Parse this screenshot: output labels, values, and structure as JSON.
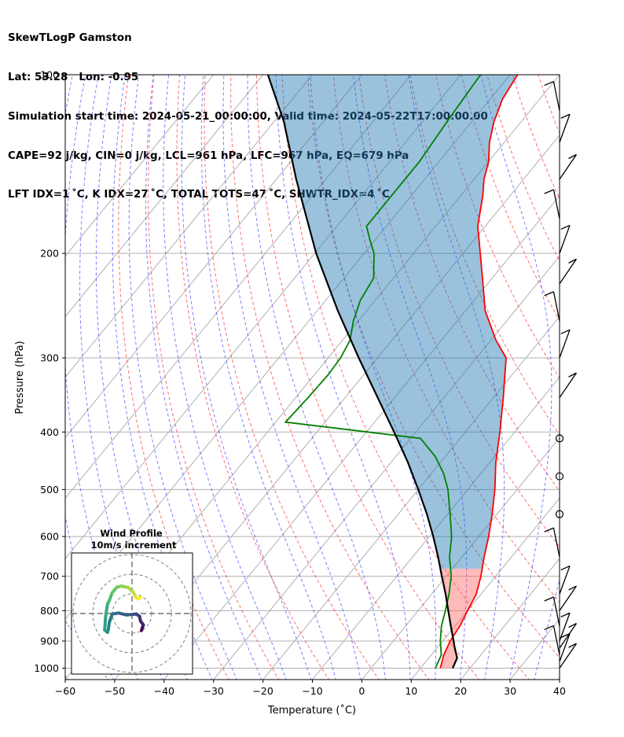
{
  "header": {
    "line1": "SkewTLogP Gamston",
    "line2": "Lat: 53.28   Lon: -0.95",
    "line3": "Simulation start time: 2024-05-21_00:00:00, Valid time: 2024-05-22T17:00:00.00",
    "line4": "CAPE=92 j/kg, CIN=0 j/kg, LCL=961 hPa, LFC=967 hPa, EQ=679 hPa",
    "line5": "LFT IDX=1 ˚C, K IDX=27 ˚C, TOTAL TOTS=47 ˚C, SHWTR_IDX=4 ˚C"
  },
  "chart_data": {
    "type": "skewt",
    "xlabel": "Temperature (˚C)",
    "ylabel": "Pressure (hPa)",
    "xlim": [
      -60,
      40
    ],
    "ylim": [
      1050,
      100
    ],
    "xticks": [
      -60,
      -50,
      -40,
      -30,
      -20,
      -10,
      0,
      10,
      20,
      30,
      40
    ],
    "yticks": [
      1000,
      900,
      800,
      700,
      600,
      500,
      400,
      300,
      200,
      100
    ],
    "temperature": {
      "name": "Temperature",
      "color": "#ff0000",
      "p": [
        1000,
        950,
        900,
        850,
        800,
        750,
        700,
        650,
        600,
        550,
        500,
        450,
        400,
        350,
        300,
        280,
        250,
        220,
        200,
        180,
        160,
        150,
        140,
        130,
        120,
        110,
        100
      ],
      "t": [
        14,
        12.5,
        11.5,
        11,
        10,
        9,
        7,
        4.5,
        2,
        -1,
        -4.5,
        -8.8,
        -13,
        -18,
        -24,
        -29,
        -36,
        -42,
        -46.5,
        -51.5,
        -55.5,
        -58,
        -60,
        -63,
        -65.5,
        -67.5,
        -68.5
      ]
    },
    "dewpoint": {
      "name": "Dewpoint",
      "color": "#008000",
      "p": [
        1000,
        950,
        900,
        850,
        800,
        750,
        700,
        650,
        600,
        550,
        500,
        470,
        440,
        410,
        385,
        350,
        320,
        300,
        280,
        260,
        240,
        220,
        200,
        190,
        180,
        160,
        140,
        120,
        100
      ],
      "t": [
        13,
        12,
        9.5,
        7.3,
        5.5,
        3.5,
        1,
        -2.5,
        -5.5,
        -9.5,
        -14,
        -17.5,
        -22,
        -28,
        -58,
        -57.5,
        -57.2,
        -57.5,
        -58.5,
        -61,
        -63,
        -64,
        -68,
        -71,
        -74,
        -74,
        -74,
        -75,
        -76
      ]
    },
    "parcel": {
      "name": "Parcel profile",
      "color": "#000000",
      "p": [
        1000,
        961,
        925,
        900,
        850,
        800,
        750,
        700,
        650,
        600,
        550,
        500,
        450,
        400,
        350,
        300,
        250,
        200,
        150,
        120,
        100
      ],
      "t": [
        16.5,
        15.7,
        13.6,
        12.2,
        9.2,
        6.1,
        2.8,
        -0.9,
        -4.8,
        -9.2,
        -14.2,
        -20,
        -26.6,
        -34.4,
        -43.4,
        -53.8,
        -65.8,
        -79.7,
        -96,
        -108,
        -119
      ]
    },
    "cape_color": "#ff6666",
    "cin_color": "#1f77b4",
    "wind_barbs": [
      {
        "p": 1000,
        "speed": "barb"
      },
      {
        "p": 975,
        "speed": "barb"
      },
      {
        "p": 950,
        "speed": "barb"
      },
      {
        "p": 925,
        "speed": "barb"
      },
      {
        "p": 900,
        "speed": "barb"
      },
      {
        "p": 850,
        "speed": "barb"
      },
      {
        "p": 800,
        "speed": "barb"
      },
      {
        "p": 750,
        "speed": "barb"
      },
      {
        "p": 650,
        "speed": "barb"
      },
      {
        "p": 550,
        "speed": "calm"
      },
      {
        "p": 475,
        "speed": "calm"
      },
      {
        "p": 410,
        "speed": "calm"
      },
      {
        "p": 350,
        "speed": "barb"
      },
      {
        "p": 300,
        "speed": "barb"
      },
      {
        "p": 260,
        "speed": "barb"
      },
      {
        "p": 225,
        "speed": "barb"
      },
      {
        "p": 200,
        "speed": "barb"
      },
      {
        "p": 175,
        "speed": "barb"
      },
      {
        "p": 150,
        "speed": "barb"
      },
      {
        "p": 130,
        "speed": "barb"
      },
      {
        "p": 115,
        "speed": "barb"
      }
    ],
    "inset": {
      "title_line1": "Wind Profile",
      "title_line2": "10m/s increment",
      "hodograph": {
        "u": [
          2,
          2.2,
          2.4,
          1.8,
          1.6,
          0.9,
          0,
          -1.2,
          -2.8,
          -4.2,
          -4.8,
          -5,
          -5.2,
          -5.8,
          -5.6,
          -5.2,
          -4.8,
          -4.2,
          -3.2,
          -2.2,
          -0.8,
          0.3,
          0.7,
          1.2,
          1.8
        ],
        "v": [
          -3.6,
          -3,
          -2.4,
          -1.6,
          -0.6,
          -0.1,
          -0.2,
          -0.3,
          0.1,
          -0.1,
          -1.8,
          -3.2,
          -4,
          -3.5,
          -0.6,
          2,
          2.8,
          4.4,
          5.6,
          5.8,
          5.5,
          4.5,
          3.6,
          3.1,
          3.4
        ],
        "colormap": [
          "#440154",
          "#3b528b",
          "#21918c",
          "#5ec962",
          "#fde725"
        ]
      }
    }
  }
}
